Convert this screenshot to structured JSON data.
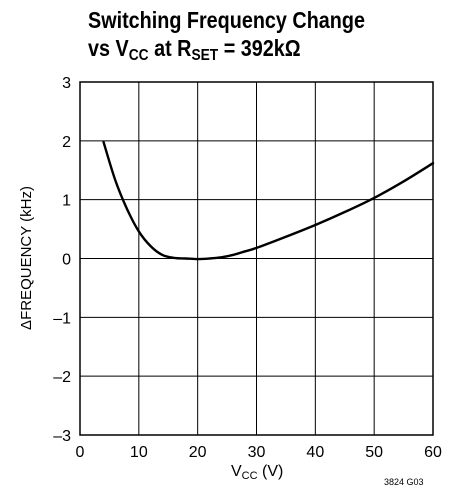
{
  "title": {
    "line1": "Switching Frequency Change",
    "line2_pre": "vs V",
    "line2_sub1": "CC",
    "line2_mid": " at R",
    "line2_sub2": "SET",
    "line2_post": " = 392kΩ"
  },
  "chart_data": {
    "type": "line",
    "ylabel": "ΔFREQUENCY (kHz)",
    "xlabel_main": "V",
    "xlabel_sub": "CC",
    "xlabel_unit": " (V)",
    "xlim": [
      0,
      60
    ],
    "ylim": [
      -3,
      3
    ],
    "xticks": [
      "0",
      "10",
      "20",
      "30",
      "40",
      "50",
      "60"
    ],
    "yticks": [
      "3",
      "2",
      "1",
      "0",
      "–1",
      "–2",
      "–3"
    ],
    "grid": true,
    "series": [
      {
        "x": [
          4,
          6,
          8,
          10,
          12,
          14,
          16,
          18,
          20,
          22,
          24,
          26,
          28,
          30,
          35,
          40,
          45,
          50,
          55,
          60
        ],
        "values": [
          1.98,
          1.33,
          0.84,
          0.46,
          0.21,
          0.06,
          0.01,
          0.0,
          -0.01,
          0.0,
          0.02,
          0.06,
          0.12,
          0.18,
          0.37,
          0.57,
          0.79,
          1.03,
          1.31,
          1.62
        ]
      }
    ]
  },
  "figure_code": "3824 G03"
}
